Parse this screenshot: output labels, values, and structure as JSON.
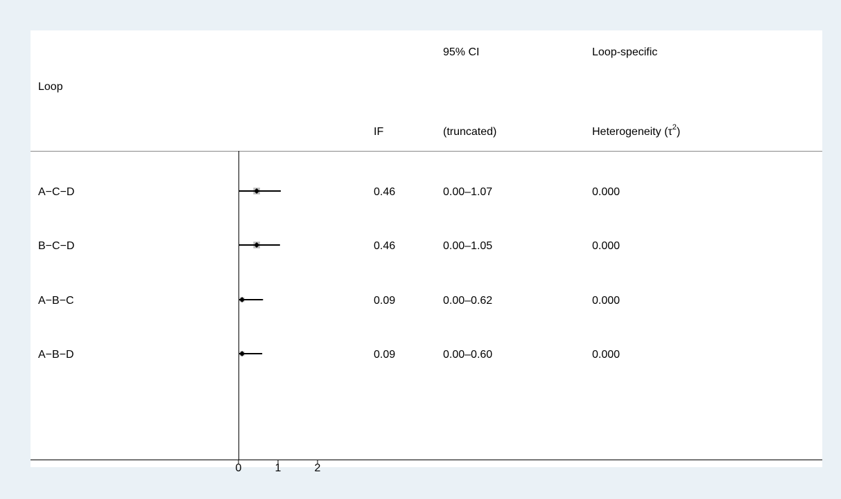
{
  "colors": {
    "background": "#eaf1f6",
    "panel": "#ffffff",
    "box": "#bdbdbd",
    "marker": "#000000"
  },
  "headers": {
    "loop": "Loop",
    "if": "IF",
    "ci_top": "95% CI",
    "ci_bottom": "(truncated)",
    "het_top": "Loop-specific",
    "het_bottom_prefix": "Heterogeneity (τ",
    "het_bottom_sup": "2",
    "het_bottom_suffix": ")"
  },
  "chart_data": {
    "type": "forest",
    "x_ticks": [
      "0",
      "1",
      "2"
    ],
    "xlim": [
      0,
      2
    ],
    "rows": [
      {
        "loop": "A−C−D",
        "if": 0.46,
        "if_label": "0.46",
        "ci": [
          0.0,
          1.07
        ],
        "ci_label": "0.00–1.07",
        "tau2_label": "0.000"
      },
      {
        "loop": "B−C−D",
        "if": 0.46,
        "if_label": "0.46",
        "ci": [
          0.0,
          1.05
        ],
        "ci_label": "0.00–1.05",
        "tau2_label": "0.000"
      },
      {
        "loop": "A−B−C",
        "if": 0.09,
        "if_label": "0.09",
        "ci": [
          0.0,
          0.62
        ],
        "ci_label": "0.00–0.62",
        "tau2_label": "0.000"
      },
      {
        "loop": "A−B−D",
        "if": 0.09,
        "if_label": "0.09",
        "ci": [
          0.0,
          0.6
        ],
        "ci_label": "0.00–0.60",
        "tau2_label": "0.000"
      }
    ]
  }
}
